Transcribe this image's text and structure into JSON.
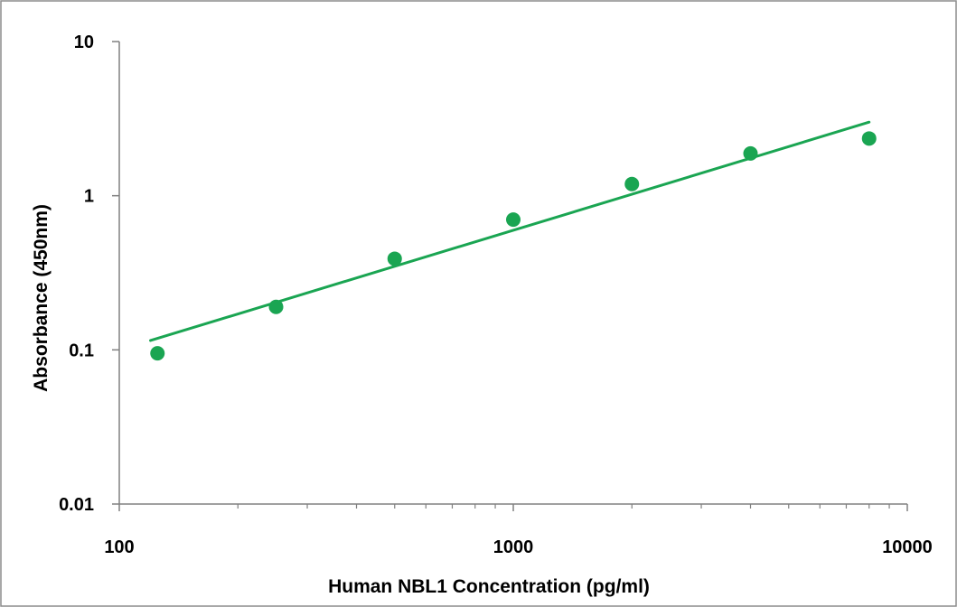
{
  "chart_data": {
    "type": "scatter",
    "title": "",
    "xlabel": "Human NBL1 Concentration (pg/ml)",
    "ylabel": "Absorbance (450nm)",
    "x_scale": "log",
    "y_scale": "log",
    "xlim": [
      100,
      10000
    ],
    "ylim": [
      0.01,
      10
    ],
    "x_ticks": [
      "100",
      "1000",
      "10000"
    ],
    "y_ticks": [
      "0.01",
      "0.1",
      "1",
      "10"
    ],
    "grid": false,
    "legend": "none",
    "series": [
      {
        "points": [
          {
            "x": 125,
            "y": 0.095
          },
          {
            "x": 250,
            "y": 0.19
          },
          {
            "x": 500,
            "y": 0.39
          },
          {
            "x": 1000,
            "y": 0.7
          },
          {
            "x": 2000,
            "y": 1.19
          },
          {
            "x": 4000,
            "y": 1.88
          },
          {
            "x": 8000,
            "y": 2.35
          }
        ]
      }
    ],
    "trendline": {
      "type": "power",
      "points": [
        {
          "x": 120,
          "y": 0.115
        },
        {
          "x": 8000,
          "y": 3.0
        }
      ]
    },
    "colors": {
      "marker": "#1aa552",
      "trendline": "#1aa552",
      "axis": "#808080",
      "frame": "#8c8c8c"
    }
  }
}
